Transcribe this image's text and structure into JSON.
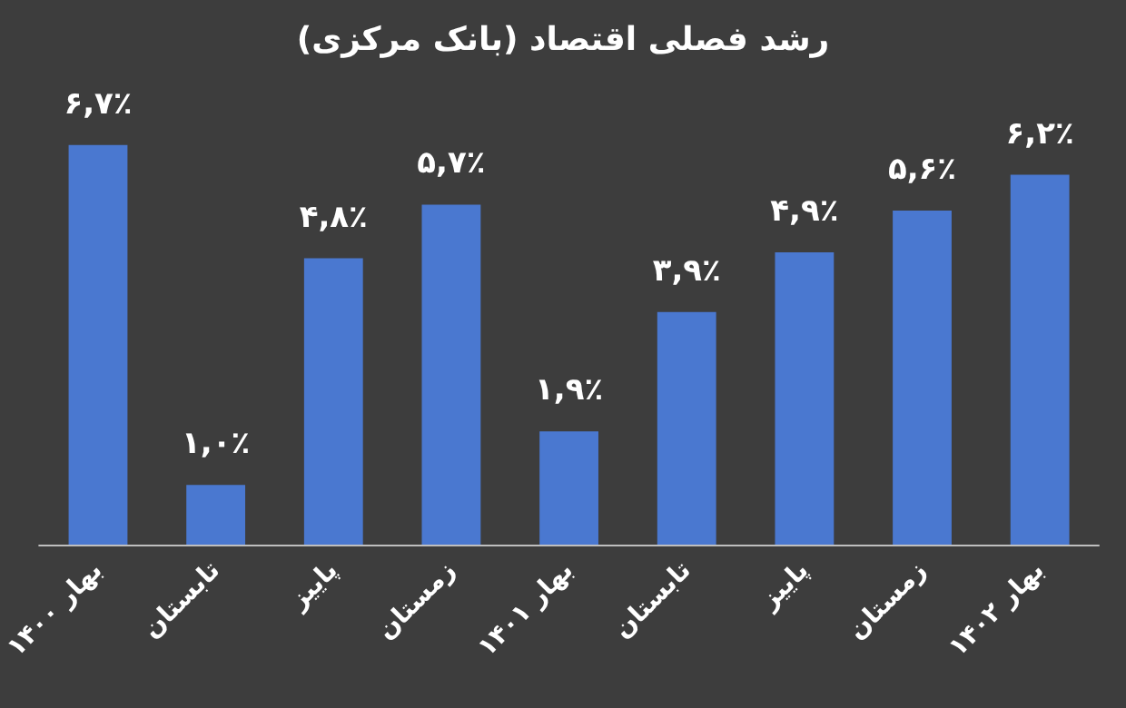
{
  "chart_data": {
    "type": "bar",
    "title": "رشد فصلی اقتصاد (بانک مرکزی)",
    "categories": [
      "بهار ۱۴۰۰",
      "تابستان",
      "پاییز",
      "زمستان",
      "بهار ۱۴۰۱",
      "تابستان",
      "پاییز",
      "زمستان",
      "بهار ۱۴۰۲"
    ],
    "values": [
      6.7,
      1.0,
      4.8,
      5.7,
      1.9,
      3.9,
      4.9,
      5.6,
      6.2
    ],
    "value_labels": [
      "۶,۷٪",
      "۱,۰٪",
      "۴,۸٪",
      "۵,۷٪",
      "۱,۹٪",
      "۳,۹٪",
      "۴,۹٪",
      "۵,۶٪",
      "۶,۲٪"
    ],
    "color": "#4a78d0"
  }
}
